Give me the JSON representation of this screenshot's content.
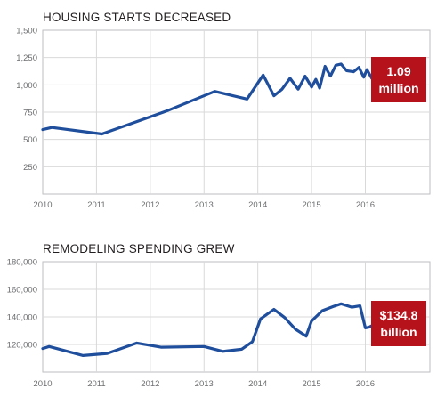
{
  "chart_data": [
    {
      "type": "line",
      "title": "HOUSING STARTS DECREASED",
      "xlabel": "",
      "ylabel": "",
      "x_ticks": [
        "2010",
        "2011",
        "2012",
        "2013",
        "2014",
        "2015",
        "2016"
      ],
      "y_ticks": [
        "250",
        "500",
        "750",
        "1,000",
        "1,250",
        "1,500"
      ],
      "ylim": [
        0,
        1500
      ],
      "xlim": [
        2010.0,
        2017.2
      ],
      "grid": true,
      "line_color": "#1f4e9c",
      "series": [
        {
          "x": [
            2010.0,
            2010.17,
            2011.1,
            2011.9,
            2012.3,
            2013.2,
            2013.8,
            2014.1,
            2014.3,
            2014.45,
            2014.6,
            2014.75,
            2014.88,
            2015.0,
            2015.08,
            2015.15,
            2015.25,
            2015.35,
            2015.45,
            2015.55,
            2015.65,
            2015.78,
            2015.88,
            2015.97,
            2016.03,
            2016.12,
            2016.22
          ],
          "y": [
            590,
            610,
            550,
            690,
            760,
            940,
            870,
            1090,
            900,
            960,
            1060,
            960,
            1080,
            980,
            1050,
            970,
            1170,
            1080,
            1180,
            1190,
            1130,
            1120,
            1160,
            1070,
            1140,
            1060,
            1090
          ]
        }
      ],
      "annotation": {
        "value": "1.09",
        "unit": "million",
        "color": "#b5121b"
      }
    },
    {
      "type": "line",
      "title": "REMODELING SPENDING GREW",
      "xlabel": "",
      "ylabel": "",
      "x_ticks": [
        "2010",
        "2011",
        "2012",
        "2013",
        "2014",
        "2015",
        "2016"
      ],
      "y_ticks": [
        "120,000",
        "140,000",
        "160,000",
        "180,000"
      ],
      "ylim": [
        100000,
        180000
      ],
      "xlim": [
        2010.0,
        2017.2
      ],
      "grid": true,
      "line_color": "#1f4e9c",
      "series": [
        {
          "x": [
            2010.0,
            2010.12,
            2010.75,
            2011.2,
            2011.75,
            2012.2,
            2013.0,
            2013.35,
            2013.7,
            2013.9,
            2014.05,
            2014.3,
            2014.5,
            2014.7,
            2014.9,
            2015.0,
            2015.2,
            2015.4,
            2015.55,
            2015.75,
            2015.9,
            2016.0,
            2016.07,
            2016.18
          ],
          "y": [
            117000,
            118500,
            112000,
            113500,
            121000,
            118000,
            118500,
            115000,
            116500,
            122000,
            138500,
            145500,
            139500,
            131000,
            126000,
            137000,
            144500,
            147500,
            149500,
            147000,
            148000,
            132000,
            132500,
            134800
          ]
        }
      ],
      "annotation": {
        "value": "$134.8",
        "unit": "billion",
        "color": "#b5121b"
      }
    }
  ]
}
